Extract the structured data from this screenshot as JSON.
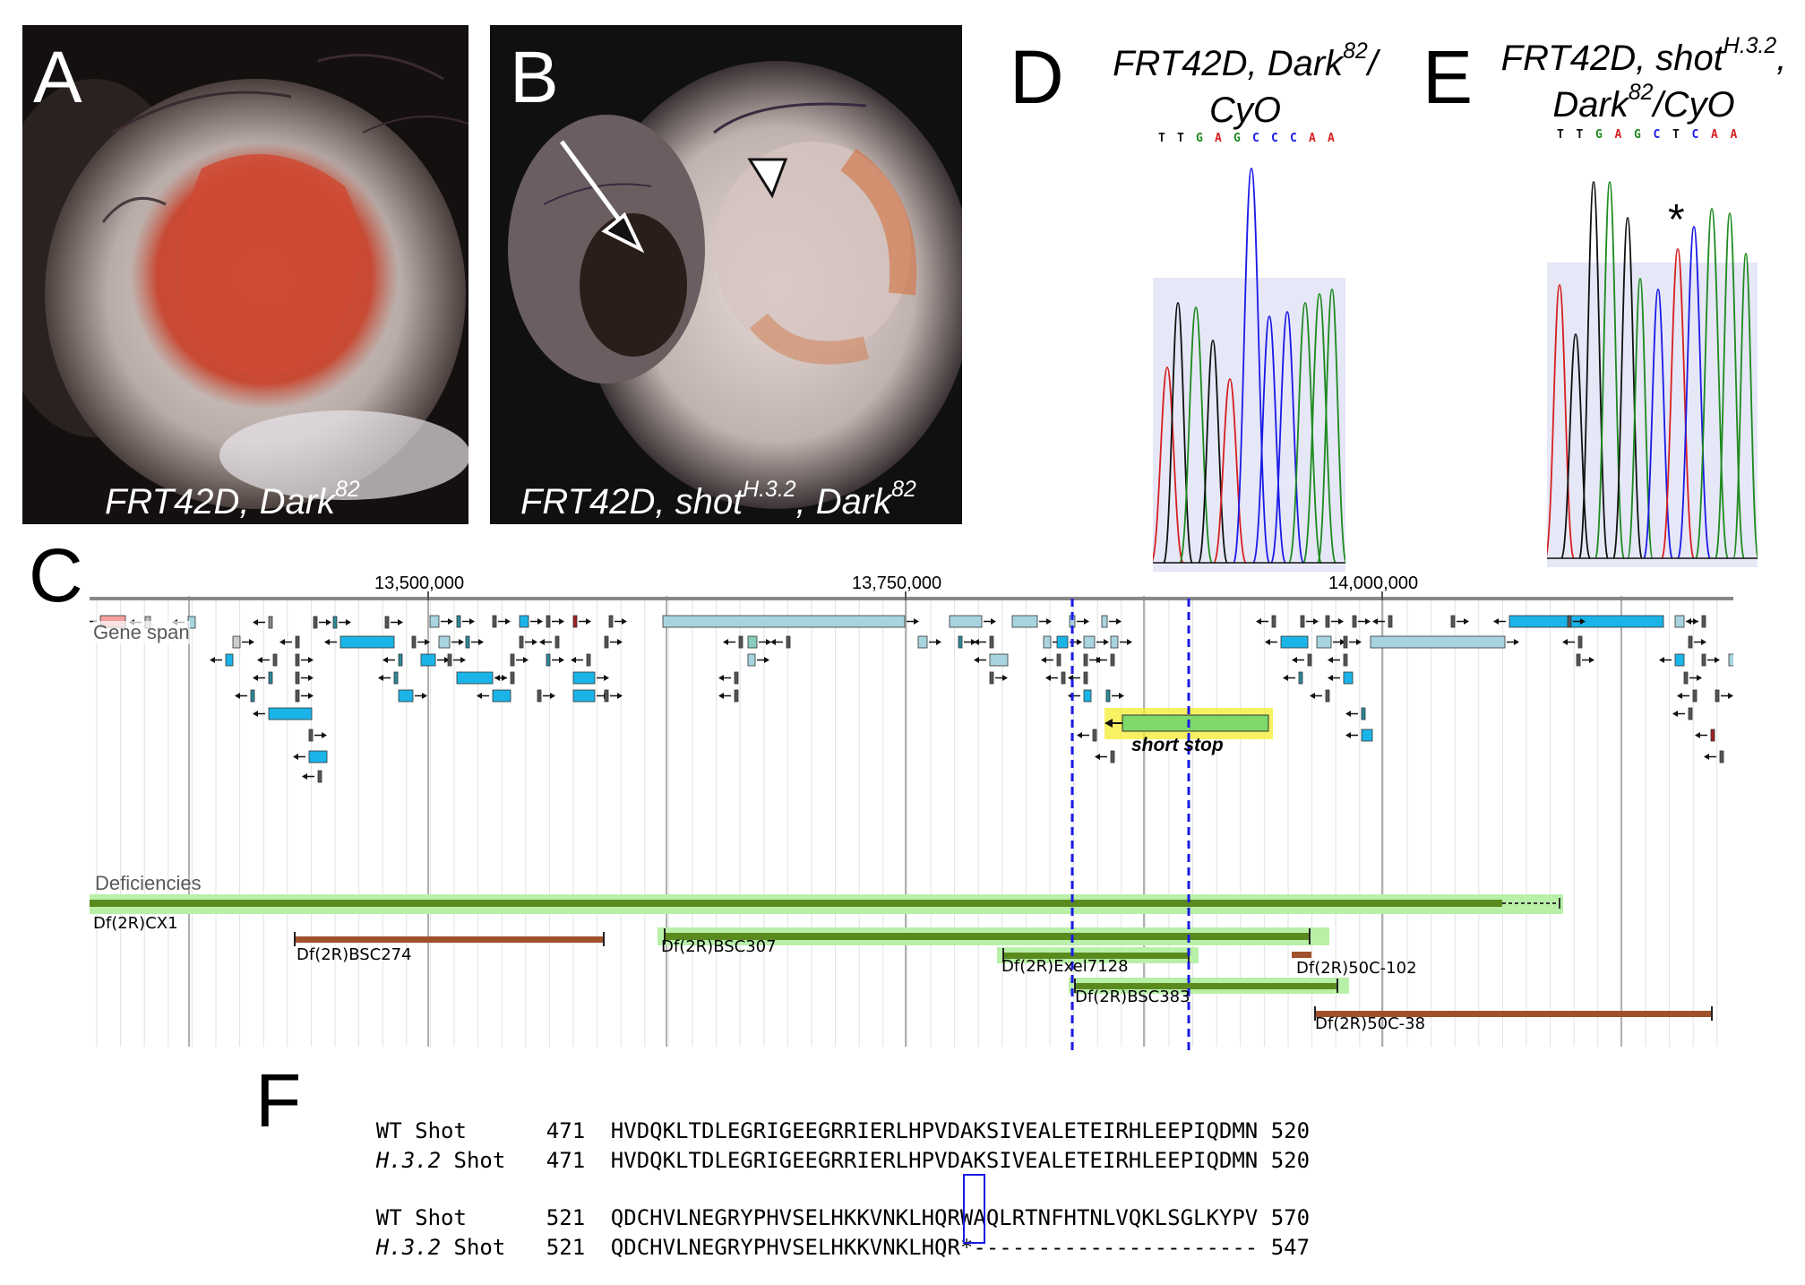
{
  "panels": {
    "A": {
      "letter": "A",
      "caption_main": "FRT42D, Dark",
      "caption_sup": "82"
    },
    "B": {
      "letter": "B",
      "caption_part1": "FRT42D, shot",
      "caption_sup1": "H.3.2",
      "caption_part2": ", Dark",
      "caption_sup2": "82"
    },
    "C": {
      "letter": "C"
    },
    "D": {
      "letter": "D",
      "title_part1": "FRT42D, Dark",
      "title_sup": "82",
      "title_part2": "/",
      "title_line2": "CyO",
      "sequence": [
        "T",
        "T",
        "G",
        "A",
        "G",
        "C",
        "C",
        "C",
        "A",
        "A"
      ]
    },
    "E": {
      "letter": "E",
      "title_part1": "FRT42D, shot",
      "title_sup1": "H.3.2",
      "title_part2": ",",
      "title_line2_a": "Dark",
      "title_sup2": "82",
      "title_line2_b": "/CyO",
      "sequence": [
        "T",
        "T",
        "G",
        "A",
        "G",
        "C",
        "T",
        "C",
        "A",
        "A"
      ],
      "marker": "*"
    },
    "F": {
      "letter": "F"
    }
  },
  "colors": {
    "A": "#d62020",
    "C": "#1a1ae6",
    "G": "#1e8a1e",
    "T": "#111111",
    "gene_light": "#a8d4e0",
    "gene_dark": "#1ab4e8",
    "def_green": "#5a8a1e",
    "def_brown": "#a0502a"
  },
  "genome_browser": {
    "ruler_labels": [
      "13,500,000",
      "13,750,000",
      "14,000,000"
    ],
    "gene_span_label": "Gene span",
    "gene_label": "short stop",
    "deficiencies_label": "Deficiencies",
    "deficiencies": [
      "Df(2R)CX1",
      "Df(2R)BSC274",
      "Df(2R)BSC307",
      "Df(2R)Exel7128",
      "Df(2R)50C-102",
      "Df(2R)BSC383",
      "Df(2R)50C-38"
    ]
  },
  "alignment": {
    "rows": [
      {
        "name": "WT Shot",
        "italic": false,
        "start": "471",
        "seq": "HVDQKLTDLEGRIGEEGRRIERLHPVDAKSIVEALETEIRHLEEPIQDMN",
        "end": "520"
      },
      {
        "name": "H.3.2",
        "name_suffix": " Shot",
        "italic": true,
        "start": "471",
        "seq": "HVDQKLTDLEGRIGEEGRRIERLHPVDAKSIVEALETEIRHLEEPIQDMN",
        "end": "520"
      },
      {
        "name": "WT Shot",
        "italic": false,
        "start": "521",
        "seq": "QDCHVLNEGRYPHVSELHKKVNKLHQRWAQLRTNFHTNLVQKLSGLKYPV",
        "end": "570"
      },
      {
        "name": "H.3.2",
        "name_suffix": " Shot",
        "italic": true,
        "start": "521",
        "seq": "QDCHVLNEGRYPHVSELHKKVNKLHQR*----------------------",
        "end": "547"
      }
    ]
  }
}
